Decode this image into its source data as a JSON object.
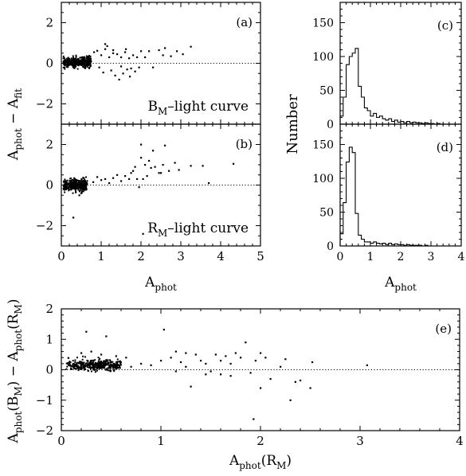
{
  "chart_data": [
    {
      "panel": "a",
      "type": "scatter",
      "panel_label": "(a)",
      "annotation": {
        "main": "B",
        "sub": "M",
        "rest": "–light curve"
      },
      "xlim": [
        0,
        5
      ],
      "ylim": [
        -3,
        3
      ],
      "xticks": [
        0,
        1,
        2,
        3,
        4,
        5
      ],
      "yticks": [
        -2,
        0,
        2
      ],
      "ylabel": {
        "a": "A",
        "phot": "phot",
        "minus": "− A",
        "fit": "fit"
      },
      "reference_line_y": 0,
      "cluster": {
        "x_range": [
          0.05,
          0.75
        ],
        "y_center": 0.05,
        "y_spread": 0.12,
        "count": 360
      },
      "points": [
        [
          0.82,
          0.55
        ],
        [
          0.9,
          0.62
        ],
        [
          0.95,
          -0.2
        ],
        [
          1.0,
          0.4
        ],
        [
          1.05,
          -0.45
        ],
        [
          1.1,
          0.7
        ],
        [
          1.15,
          0.85
        ],
        [
          1.2,
          0.3
        ],
        [
          1.25,
          -0.35
        ],
        [
          1.3,
          0.5
        ],
        [
          1.35,
          -0.6
        ],
        [
          1.4,
          0.45
        ],
        [
          1.45,
          -0.8
        ],
        [
          1.5,
          0.3
        ],
        [
          1.55,
          -0.5
        ],
        [
          1.6,
          0.55
        ],
        [
          1.65,
          -0.3
        ],
        [
          1.7,
          0.25
        ],
        [
          1.72,
          -0.65
        ],
        [
          1.8,
          0.4
        ],
        [
          1.85,
          -0.4
        ],
        [
          1.9,
          0.3
        ],
        [
          1.95,
          -0.2
        ],
        [
          2.0,
          0.6
        ],
        [
          2.1,
          0.3
        ],
        [
          2.2,
          0.6
        ],
        [
          2.3,
          -0.2
        ],
        [
          2.45,
          0.65
        ],
        [
          2.55,
          0.4
        ],
        [
          2.6,
          0.75
        ],
        [
          2.75,
          0.35
        ],
        [
          2.9,
          0.6
        ],
        [
          3.05,
          0.45
        ],
        [
          3.25,
          0.82
        ],
        [
          1.1,
          0.95
        ],
        [
          1.3,
          0.65
        ],
        [
          1.5,
          -0.15
        ],
        [
          1.62,
          0.7
        ],
        [
          1.75,
          -0.25
        ]
      ]
    },
    {
      "panel": "b",
      "type": "scatter",
      "panel_label": "(b)",
      "annotation": {
        "main": "R",
        "sub": "M",
        "rest": "–light curve"
      },
      "xlim": [
        0,
        5
      ],
      "ylim": [
        -3,
        3
      ],
      "xticks": [
        0,
        1,
        2,
        3,
        4,
        5
      ],
      "yticks": [
        -2,
        0,
        2
      ],
      "xlabel": {
        "main": "A",
        "sub": "phot"
      },
      "reference_line_y": 0,
      "cluster": {
        "x_range": [
          0.05,
          0.65
        ],
        "y_center": 0.0,
        "y_spread": 0.15,
        "count": 330
      },
      "points": [
        [
          0.3,
          -1.6
        ],
        [
          0.45,
          -0.5
        ],
        [
          0.8,
          0.15
        ],
        [
          0.9,
          0.4
        ],
        [
          1.0,
          0.25
        ],
        [
          1.1,
          0.3
        ],
        [
          1.2,
          0.1
        ],
        [
          1.3,
          0.35
        ],
        [
          1.4,
          0.5
        ],
        [
          1.5,
          0.2
        ],
        [
          1.6,
          0.45
        ],
        [
          1.7,
          0.3
        ],
        [
          1.8,
          0.7
        ],
        [
          1.85,
          0.9
        ],
        [
          1.9,
          0.3
        ],
        [
          1.95,
          -0.1
        ],
        [
          2.0,
          1.35
        ],
        [
          2.05,
          0.3
        ],
        [
          2.1,
          1.0
        ],
        [
          2.15,
          0.45
        ],
        [
          2.2,
          1.2
        ],
        [
          2.3,
          1.7
        ],
        [
          2.35,
          0.9
        ],
        [
          2.45,
          0.6
        ],
        [
          2.5,
          0.6
        ],
        [
          2.55,
          1.0
        ],
        [
          2.6,
          1.95
        ],
        [
          2.7,
          0.7
        ],
        [
          2.85,
          1.1
        ],
        [
          2.95,
          0.75
        ],
        [
          3.25,
          0.95
        ],
        [
          3.55,
          0.95
        ],
        [
          3.7,
          0.1
        ],
        [
          4.32,
          1.05
        ],
        [
          2.05,
          -2.4
        ],
        [
          2.0,
          2.0
        ],
        [
          1.75,
          0.6
        ],
        [
          2.25,
          0.85
        ]
      ]
    },
    {
      "panel": "c",
      "type": "histogram",
      "panel_label": "(c)",
      "xlim": [
        0,
        4
      ],
      "ylim": [
        0,
        180
      ],
      "xticks": [
        0,
        1,
        2,
        3,
        4
      ],
      "yticks": [
        0,
        50,
        100,
        150
      ],
      "bin_width": 0.1,
      "counts": [
        12,
        40,
        88,
        100,
        105,
        112,
        56,
        40,
        24,
        20,
        12,
        16,
        10,
        12,
        8,
        6,
        8,
        4,
        6,
        3,
        4,
        2,
        4,
        2,
        3,
        2,
        2,
        1,
        2,
        1,
        1,
        0,
        1,
        0,
        0,
        0,
        0,
        0,
        0,
        0
      ]
    },
    {
      "panel": "d",
      "type": "histogram",
      "panel_label": "(d)",
      "xlim": [
        0,
        4
      ],
      "ylim": [
        0,
        180
      ],
      "xticks": [
        0,
        1,
        2,
        3,
        4
      ],
      "yticks": [
        0,
        50,
        100,
        150
      ],
      "xlabel": {
        "main": "A",
        "sub": "phot"
      },
      "shared_ylabel": "Number",
      "bin_width": 0.1,
      "counts": [
        18,
        64,
        124,
        146,
        138,
        48,
        16,
        10,
        6,
        6,
        4,
        6,
        4,
        3,
        4,
        2,
        4,
        2,
        3,
        2,
        2,
        1,
        2,
        1,
        1,
        1,
        1,
        0,
        1,
        0,
        0,
        0,
        0,
        0,
        0,
        0,
        0,
        0,
        0,
        0
      ]
    },
    {
      "panel": "e",
      "type": "scatter",
      "panel_label": "(e)",
      "xlim": [
        0,
        4
      ],
      "ylim": [
        -2,
        2
      ],
      "xticks": [
        0,
        1,
        2,
        3,
        4
      ],
      "yticks": [
        -2,
        -1,
        0,
        1,
        2
      ],
      "xlabel": {
        "a": "A",
        "phot": "phot",
        "open": "(R",
        "m": "M",
        "close": ")"
      },
      "ylabel": {
        "a": "A",
        "phot": "phot",
        "b": "(B",
        "m1": "M",
        "mid": ") − A",
        "phot2": "phot",
        "r": "(R",
        "m2": "M",
        "close": ")"
      },
      "reference_line_y": 0,
      "cluster": {
        "x_range": [
          0.05,
          0.6
        ],
        "y_center": 0.15,
        "y_spread": 0.09,
        "count": 360
      },
      "points": [
        [
          0.25,
          1.25
        ],
        [
          0.45,
          1.1
        ],
        [
          0.2,
          0.55
        ],
        [
          0.3,
          0.6
        ],
        [
          0.4,
          0.5
        ],
        [
          0.55,
          0.45
        ],
        [
          0.65,
          0.4
        ],
        [
          0.7,
          0.1
        ],
        [
          0.8,
          0.2
        ],
        [
          0.9,
          0.15
        ],
        [
          1.0,
          0.3
        ],
        [
          1.03,
          1.32
        ],
        [
          1.1,
          0.4
        ],
        [
          1.15,
          0.6
        ],
        [
          1.2,
          0.25
        ],
        [
          1.25,
          0.55
        ],
        [
          1.3,
          -0.55
        ],
        [
          1.35,
          0.5
        ],
        [
          1.4,
          0.3
        ],
        [
          1.45,
          0.2
        ],
        [
          1.5,
          -0.05
        ],
        [
          1.55,
          0.5
        ],
        [
          1.6,
          0.3
        ],
        [
          1.65,
          0.45
        ],
        [
          1.7,
          0.2
        ],
        [
          1.75,
          0.55
        ],
        [
          1.8,
          0.4
        ],
        [
          1.85,
          0.9
        ],
        [
          1.9,
          -0.1
        ],
        [
          1.95,
          0.3
        ],
        [
          2.0,
          -0.6
        ],
        [
          2.05,
          0.4
        ],
        [
          2.1,
          -0.3
        ],
        [
          2.2,
          0.1
        ],
        [
          2.3,
          -1.0
        ],
        [
          2.35,
          -0.4
        ],
        [
          2.4,
          -0.35
        ],
        [
          2.5,
          -0.6
        ],
        [
          2.52,
          0.25
        ],
        [
          3.07,
          0.15
        ],
        [
          1.93,
          -1.62
        ],
        [
          1.25,
          0.1
        ],
        [
          1.45,
          -0.15
        ],
        [
          1.15,
          -0.05
        ],
        [
          2.0,
          0.55
        ],
        [
          2.25,
          0.35
        ],
        [
          1.7,
          -0.2
        ],
        [
          1.6,
          -0.15
        ]
      ]
    }
  ]
}
